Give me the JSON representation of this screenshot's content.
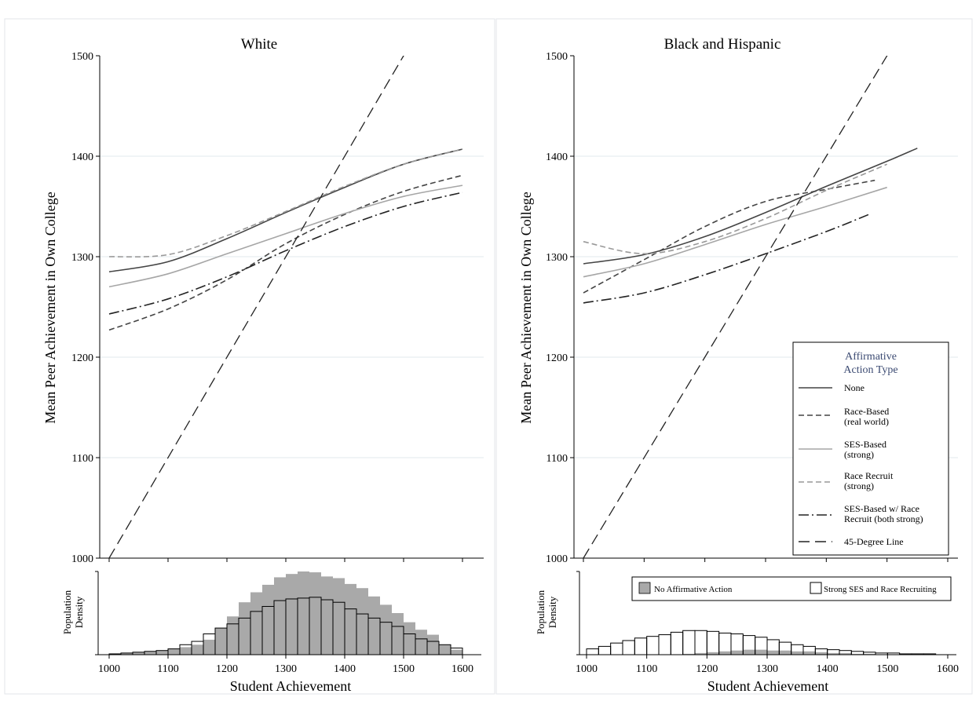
{
  "figure": {
    "y_axis_label": "Mean Peer Achievement in Own College",
    "density_label_line1": "Population",
    "density_label_line2": "Density",
    "x_axis_label": "Student Achievement"
  },
  "legend": {
    "title_line1": "Affirmative",
    "title_line2": "Action Type",
    "items": [
      {
        "key": "none",
        "line1": "None",
        "line2": ""
      },
      {
        "key": "race",
        "line1": "Race-Based",
        "line2": "(real world)"
      },
      {
        "key": "ses",
        "line1": "SES-Based",
        "line2": "(strong)"
      },
      {
        "key": "recruit",
        "line1": "Race Recruit",
        "line2": "(strong)"
      },
      {
        "key": "sesrec",
        "line1": "SES-Based w/ Race",
        "line2": "Recruit (both strong)"
      },
      {
        "key": "deg45",
        "line1": "45-Degree Line",
        "line2": ""
      }
    ]
  },
  "hist_legend": {
    "no_aa": "No Affirmative Action",
    "strong": "Strong SES and Race Recruiting"
  },
  "styles": {
    "none": {
      "color": "#444444",
      "dash": ""
    },
    "race": {
      "color": "#444444",
      "dash": "7,4"
    },
    "ses": {
      "color": "#a6a6a6",
      "dash": ""
    },
    "recruit": {
      "color": "#999999",
      "dash": "7,4"
    },
    "sesrec": {
      "color": "#222222",
      "dash": "13,4,2,4"
    },
    "deg45": {
      "color": "#222222",
      "dash": "14,7"
    },
    "hist_fill": "#a9a9a9",
    "hist_outline": "#000000"
  },
  "chart_data": [
    {
      "type": "line",
      "title": "White",
      "xlim": [
        1000,
        1600
      ],
      "ylim": [
        1000,
        1500
      ],
      "yticks": [
        1000,
        1100,
        1200,
        1300,
        1400,
        1500
      ],
      "grid": true,
      "series": [
        {
          "name": "None",
          "key": "none",
          "x": [
            1000,
            1100,
            1200,
            1300,
            1400,
            1500,
            1600
          ],
          "y": [
            1285,
            1295,
            1318,
            1344,
            1369,
            1392,
            1407
          ]
        },
        {
          "name": "Race-Based (real world)",
          "key": "race",
          "x": [
            1000,
            1100,
            1200,
            1300,
            1400,
            1500,
            1600
          ],
          "y": [
            1227,
            1248,
            1277,
            1313,
            1342,
            1365,
            1381
          ]
        },
        {
          "name": "SES-Based (strong)",
          "key": "ses",
          "x": [
            1000,
            1100,
            1200,
            1300,
            1400,
            1500,
            1600
          ],
          "y": [
            1270,
            1283,
            1303,
            1323,
            1343,
            1360,
            1371
          ]
        },
        {
          "name": "Race Recruit (strong)",
          "key": "recruit",
          "x": [
            1000,
            1100,
            1200,
            1300,
            1400,
            1500,
            1600
          ],
          "y": [
            1300,
            1302,
            1321,
            1345,
            1370,
            1392,
            1407
          ]
        },
        {
          "name": "SES-Based w/ Race Recruit (both strong)",
          "key": "sesrec",
          "x": [
            1000,
            1100,
            1200,
            1300,
            1400,
            1500,
            1600
          ],
          "y": [
            1243,
            1258,
            1280,
            1306,
            1330,
            1350,
            1364
          ]
        },
        {
          "name": "45-Degree Line",
          "key": "deg45",
          "x": [
            1000,
            1500
          ],
          "y": [
            1000,
            1500
          ]
        }
      ]
    },
    {
      "type": "line",
      "title": "Black and Hispanic",
      "xlim": [
        1000,
        1600
      ],
      "ylim": [
        1000,
        1500
      ],
      "yticks": [
        1000,
        1100,
        1200,
        1300,
        1400,
        1500
      ],
      "grid": true,
      "legend_position": "bottom-right",
      "series": [
        {
          "name": "None",
          "key": "none",
          "x": [
            1000,
            1100,
            1200,
            1300,
            1400,
            1500,
            1550
          ],
          "y": [
            1293,
            1302,
            1320,
            1344,
            1370,
            1395,
            1408
          ]
        },
        {
          "name": "Race-Based (real world)",
          "key": "race",
          "x": [
            1000,
            1100,
            1200,
            1300,
            1400,
            1480
          ],
          "y": [
            1264,
            1297,
            1330,
            1355,
            1367,
            1376
          ]
        },
        {
          "name": "SES-Based (strong)",
          "key": "ses",
          "x": [
            1000,
            1100,
            1200,
            1300,
            1400,
            1500
          ],
          "y": [
            1280,
            1293,
            1312,
            1332,
            1350,
            1369
          ]
        },
        {
          "name": "Race Recruit (strong)",
          "key": "recruit",
          "x": [
            1000,
            1100,
            1200,
            1300,
            1400,
            1500
          ],
          "y": [
            1315,
            1303,
            1315,
            1338,
            1366,
            1392
          ]
        },
        {
          "name": "SES-Based w/ Race Recruit (both strong)",
          "key": "sesrec",
          "x": [
            1000,
            1100,
            1200,
            1300,
            1400,
            1470
          ],
          "y": [
            1254,
            1264,
            1282,
            1303,
            1325,
            1342
          ]
        },
        {
          "name": "45-Degree Line",
          "key": "deg45",
          "x": [
            1000,
            1500
          ],
          "y": [
            1000,
            1500
          ]
        }
      ]
    },
    {
      "type": "bar",
      "xticks": [
        1000,
        1100,
        1200,
        1300,
        1400,
        1500,
        1600
      ],
      "bin_width": 20,
      "bin_starts": [
        1000,
        1020,
        1040,
        1060,
        1080,
        1100,
        1120,
        1140,
        1160,
        1180,
        1200,
        1220,
        1240,
        1260,
        1280,
        1300,
        1320,
        1340,
        1360,
        1380,
        1400,
        1420,
        1440,
        1460,
        1480,
        1500,
        1520,
        1540,
        1560,
        1580
      ],
      "ymax": 1.0,
      "series": [
        {
          "name": "No Affirmative Action",
          "values": [
            0.01,
            0.02,
            0.03,
            0.04,
            0.05,
            0.07,
            0.09,
            0.12,
            0.18,
            0.32,
            0.46,
            0.63,
            0.75,
            0.84,
            0.93,
            0.97,
            1.0,
            0.99,
            0.94,
            0.92,
            0.85,
            0.8,
            0.7,
            0.6,
            0.5,
            0.39,
            0.3,
            0.24,
            0.12,
            0.06
          ]
        },
        {
          "name": "Strong SES and Race Recruiting",
          "values": [
            0.01,
            0.02,
            0.03,
            0.04,
            0.05,
            0.07,
            0.12,
            0.16,
            0.25,
            0.32,
            0.37,
            0.44,
            0.52,
            0.58,
            0.65,
            0.67,
            0.68,
            0.69,
            0.66,
            0.63,
            0.55,
            0.49,
            0.44,
            0.39,
            0.34,
            0.25,
            0.19,
            0.16,
            0.12,
            0.08
          ]
        }
      ]
    },
    {
      "type": "bar",
      "xticks": [
        1000,
        1100,
        1200,
        1300,
        1400,
        1500,
        1600
      ],
      "bin_width": 20,
      "bin_starts": [
        1000,
        1020,
        1040,
        1060,
        1080,
        1100,
        1120,
        1140,
        1160,
        1180,
        1200,
        1220,
        1240,
        1260,
        1280,
        1300,
        1320,
        1340,
        1360,
        1380,
        1400,
        1420,
        1440,
        1460,
        1480,
        1500,
        1520,
        1540,
        1560
      ],
      "ymax": 1.0,
      "legend_position": "top",
      "series": [
        {
          "name": "No Affirmative Action",
          "values": [
            0.0,
            0.0,
            0.0,
            0.0,
            0.0,
            0.0,
            0.0,
            0.0,
            0.01,
            0.02,
            0.03,
            0.04,
            0.05,
            0.06,
            0.06,
            0.05,
            0.05,
            0.04,
            0.04,
            0.03,
            0.02,
            0.02,
            0.01,
            0.01,
            0.0,
            0.0,
            0.0,
            0.0,
            0.0
          ]
        },
        {
          "name": "Strong SES and Race Recruiting",
          "values": [
            0.07,
            0.1,
            0.14,
            0.17,
            0.2,
            0.22,
            0.24,
            0.27,
            0.29,
            0.29,
            0.28,
            0.26,
            0.25,
            0.23,
            0.21,
            0.18,
            0.15,
            0.12,
            0.1,
            0.07,
            0.06,
            0.05,
            0.04,
            0.03,
            0.02,
            0.02,
            0.01,
            0.01,
            0.01
          ]
        }
      ]
    }
  ]
}
